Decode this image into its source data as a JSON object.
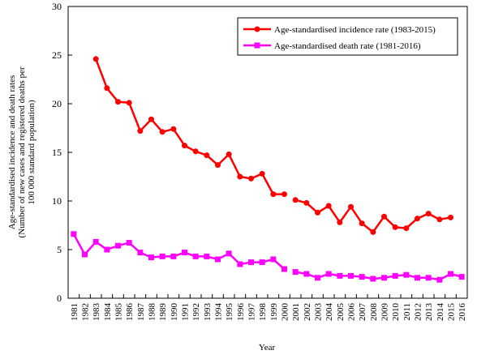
{
  "chart_data": {
    "type": "line",
    "title": "",
    "xlabel": "Year",
    "ylabel_lines": [
      "Age-standardised incidence and death rates",
      "(Number of new cases and registered deaths per",
      "100 000 standard population)"
    ],
    "ylim": [
      0,
      30
    ],
    "yticks": [
      0,
      5,
      10,
      15,
      20,
      25,
      30
    ],
    "x": [
      1981,
      1982,
      1983,
      1984,
      1985,
      1986,
      1987,
      1988,
      1989,
      1990,
      1991,
      1992,
      1993,
      1994,
      1995,
      1996,
      1997,
      1998,
      1999,
      2000,
      2001,
      2002,
      2003,
      2004,
      2005,
      2006,
      2007,
      2008,
      2009,
      2010,
      2011,
      2012,
      2013,
      2014,
      2015,
      2016
    ],
    "grid": false,
    "legend_position": "top-right",
    "series": [
      {
        "name": "Age-standardised incidence rate (1983-2015)",
        "color": "#ff0000",
        "marker": "circle",
        "segments": [
          {
            "x": [
              1983,
              1984,
              1985,
              1986,
              1987,
              1988,
              1989,
              1990,
              1991,
              1992,
              1993,
              1994,
              1995,
              1996,
              1997,
              1998,
              1999,
              2000
            ],
            "y": [
              24.6,
              21.6,
              20.2,
              20.1,
              17.2,
              18.4,
              17.1,
              17.4,
              15.7,
              15.1,
              14.7,
              13.7,
              14.8,
              12.5,
              12.3,
              12.8,
              10.7,
              10.7
            ]
          },
          {
            "x": [
              2001,
              2002,
              2003,
              2004,
              2005,
              2006,
              2007,
              2008,
              2009,
              2010,
              2011,
              2012,
              2013,
              2014,
              2015
            ],
            "y": [
              10.1,
              9.8,
              8.8,
              9.5,
              7.8,
              9.4,
              7.7,
              6.8,
              8.4,
              7.3,
              7.2,
              8.2,
              8.7,
              8.1,
              8.3
            ]
          }
        ]
      },
      {
        "name": "Age-standardised death rate (1981-2016)",
        "color": "#ff00ff",
        "marker": "square",
        "segments": [
          {
            "x": [
              1981,
              1982,
              1983,
              1984,
              1985,
              1986,
              1987,
              1988,
              1989,
              1990,
              1991,
              1992,
              1993,
              1994,
              1995,
              1996,
              1997,
              1998,
              1999,
              2000
            ],
            "y": [
              6.6,
              4.5,
              5.8,
              5.0,
              5.4,
              5.7,
              4.7,
              4.2,
              4.3,
              4.3,
              4.7,
              4.3,
              4.3,
              4.0,
              4.6,
              3.5,
              3.7,
              3.7,
              4.0,
              3.0
            ]
          },
          {
            "x": [
              2001,
              2002,
              2003,
              2004,
              2005,
              2006,
              2007,
              2008,
              2009,
              2010,
              2011,
              2012,
              2013,
              2014,
              2015,
              2016
            ],
            "y": [
              2.7,
              2.5,
              2.1,
              2.5,
              2.3,
              2.3,
              2.2,
              2.0,
              2.1,
              2.3,
              2.4,
              2.1,
              2.1,
              1.9,
              2.5,
              2.2
            ]
          }
        ]
      }
    ]
  }
}
